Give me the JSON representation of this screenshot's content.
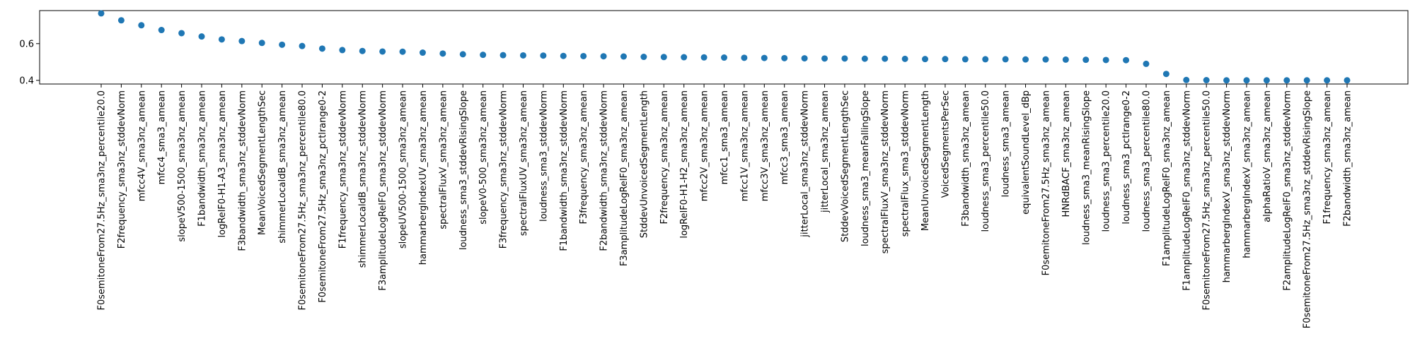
{
  "chart_data": {
    "type": "scatter",
    "title": "",
    "xlabel": "",
    "ylabel": "",
    "grid": false,
    "legend": "none",
    "ylim": [
      0.38,
      0.78
    ],
    "yticks": [
      0.4,
      0.6
    ],
    "ytick_labels": [
      "0.4",
      "0.6"
    ],
    "marker_color": "#1f77b4",
    "categories": [
      "F0semitoneFrom27.5Hz_sma3nz_percentile20.0",
      "F2frequency_sma3nz_stddevNorm",
      "mfcc4V_sma3nz_amean",
      "mfcc4_sma3_amean",
      "slopeV500-1500_sma3nz_amean",
      "F1bandwidth_sma3nz_amean",
      "logRelF0-H1-A3_sma3nz_amean",
      "F3bandwidth_sma3nz_stddevNorm",
      "MeanVoicedSegmentLengthSec",
      "shimmerLocaldB_sma3nz_amean",
      "F0semitoneFrom27.5Hz_sma3nz_percentile80.0",
      "F0semitoneFrom27.5Hz_sma3nz_pctlrange0-2",
      "F1frequency_sma3nz_stddevNorm",
      "shimmerLocaldB_sma3nz_stddevNorm",
      "F3amplitudeLogRelF0_sma3nz_stddevNorm",
      "slopeUV500-1500_sma3nz_amean",
      "hammarbergIndexUV_sma3nz_amean",
      "spectralFluxV_sma3nz_amean",
      "loudness_sma3_stddevRisingSlope",
      "slopeV0-500_sma3nz_amean",
      "F3frequency_sma3nz_stddevNorm",
      "spectralFluxUV_sma3nz_amean",
      "loudness_sma3_stddevNorm",
      "F1bandwidth_sma3nz_stddevNorm",
      "F3frequency_sma3nz_amean",
      "F2bandwidth_sma3nz_stddevNorm",
      "F3amplitudeLogRelF0_sma3nz_amean",
      "StddevUnvoicedSegmentLength",
      "F2frequency_sma3nz_amean",
      "logRelF0-H1-H2_sma3nz_amean",
      "mfcc2V_sma3nz_amean",
      "mfcc1_sma3_amean",
      "mfcc1V_sma3nz_amean",
      "mfcc3V_sma3nz_amean",
      "mfcc3_sma3_amean",
      "jitterLocal_sma3nz_stddevNorm",
      "jitterLocal_sma3nz_amean",
      "StddevVoicedSegmentLengthSec",
      "loudness_sma3_meanFallingSlope",
      "spectralFluxV_sma3nz_stddevNorm",
      "spectralFlux_sma3_stddevNorm",
      "MeanUnvoicedSegmentLength",
      "VoicedSegmentsPerSec",
      "F3bandwidth_sma3nz_amean",
      "loudness_sma3_percentile50.0",
      "loudness_sma3_amean",
      "equivalentSoundLevel_dBp",
      "F0semitoneFrom27.5Hz_sma3nz_amean",
      "HNRdBACF_sma3nz_amean",
      "loudness_sma3_meanRisingSlope",
      "loudness_sma3_percentile20.0",
      "loudness_sma3_pctlrange0-2",
      "loudness_sma3_percentile80.0",
      "F1amplitudeLogRelF0_sma3nz_amean",
      "F1amplitudeLogRelF0_sma3nz_stddevNorm",
      "F0semitoneFrom27.5Hz_sma3nz_percentile50.0",
      "hammarbergIndexV_sma3nz_stddevNorm",
      "hammarbergIndexV_sma3nz_amean",
      "alphaRatioV_sma3nz_amean",
      "F2amplitudeLogRelF0_sma3nz_stddevNorm",
      "F0semitoneFrom27.5Hz_sma3nz_stddevRisingSlope",
      "F1frequency_sma3nz_amean",
      "F2bandwidth_sma3nz_amean"
    ],
    "values": [
      0.765,
      0.727,
      0.7,
      0.674,
      0.657,
      0.639,
      0.623,
      0.614,
      0.604,
      0.594,
      0.587,
      0.573,
      0.565,
      0.56,
      0.557,
      0.556,
      0.551,
      0.546,
      0.542,
      0.539,
      0.537,
      0.536,
      0.535,
      0.533,
      0.532,
      0.531,
      0.53,
      0.528,
      0.527,
      0.526,
      0.525,
      0.524,
      0.523,
      0.522,
      0.521,
      0.52,
      0.519,
      0.519,
      0.518,
      0.518,
      0.517,
      0.516,
      0.516,
      0.515,
      0.515,
      0.515,
      0.514,
      0.514,
      0.513,
      0.512,
      0.511,
      0.51,
      0.49,
      0.435,
      0.402,
      0.401,
      0.4,
      0.4,
      0.4,
      0.4,
      0.4,
      0.4,
      0.4
    ]
  }
}
